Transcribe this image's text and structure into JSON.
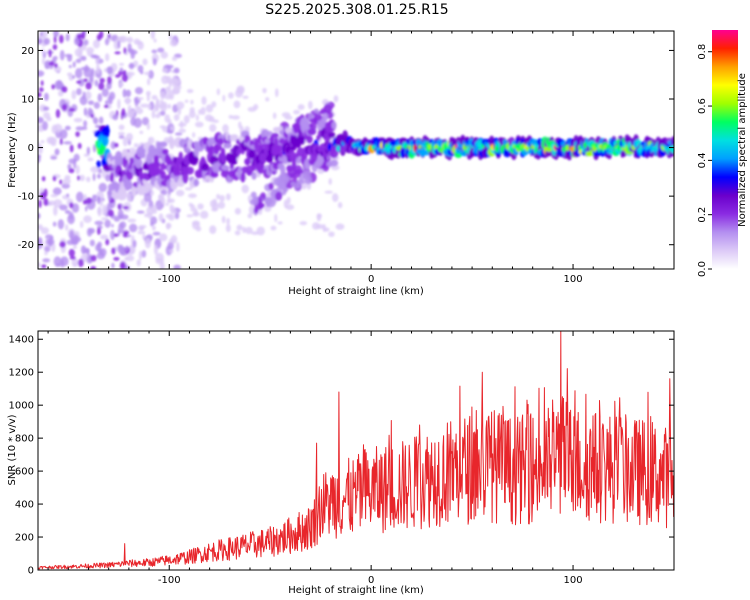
{
  "title": "S225.2025.308.01.25.R15",
  "colors": {
    "background": "#ffffff",
    "axis": "#000000",
    "snr_line": "#e8262b",
    "colormap": [
      "#ffffff",
      "#dccaf7",
      "#b48ff0",
      "#8a2be2",
      "#6a00cc",
      "#0000ff",
      "#00a0ff",
      "#00e0e0",
      "#00ff60",
      "#a0ff00",
      "#ffff00",
      "#ffa000",
      "#ff2000",
      "#ff0090"
    ]
  },
  "chart_data": [
    {
      "type": "heatmap",
      "name": "spectrogram",
      "xlabel": "Height of straight line (km)",
      "ylabel": "Frequency (Hz)",
      "xlim": [
        -165,
        150
      ],
      "ylim": [
        -25,
        24
      ],
      "xticks": [
        -100,
        0,
        100
      ],
      "yticks": [
        -20,
        -10,
        0,
        10,
        20
      ],
      "xtick_labels": [
        "-100",
        "0",
        "100"
      ],
      "ytick_labels": [
        "-20",
        "-10",
        "0",
        "10",
        "20"
      ],
      "colorbar": {
        "label": "Normalized spectral amplitude",
        "range": [
          0,
          0.88
        ],
        "ticks": [
          0.0,
          0.2,
          0.4,
          0.6,
          0.8
        ],
        "tick_labels": [
          "0.0",
          "0.2",
          "0.4",
          "0.6",
          "0.8"
        ]
      },
      "ridge": [
        {
          "x": -130,
          "freq": -6,
          "amp": 0.18
        },
        {
          "x": -110,
          "freq": -4,
          "amp": 0.22
        },
        {
          "x": -90,
          "freq": -3,
          "amp": 0.24
        },
        {
          "x": -70,
          "freq": -2,
          "amp": 0.26
        },
        {
          "x": -50,
          "freq": -1,
          "amp": 0.25
        },
        {
          "x": -30,
          "freq": 1,
          "amp": 0.28
        },
        {
          "x": -15,
          "freq": 1,
          "amp": 0.32
        },
        {
          "x": 0,
          "freq": 0,
          "amp": 0.55
        },
        {
          "x": 25,
          "freq": 0,
          "amp": 0.62
        },
        {
          "x": 50,
          "freq": 0,
          "amp": 0.6
        },
        {
          "x": 75,
          "freq": 0,
          "amp": 0.62
        },
        {
          "x": 100,
          "freq": 0,
          "amp": 0.63
        },
        {
          "x": 125,
          "freq": 0,
          "amp": 0.6
        },
        {
          "x": 150,
          "freq": 0,
          "amp": 0.55
        }
      ]
    },
    {
      "type": "line",
      "name": "snr",
      "xlabel": "Height of straight line (km)",
      "ylabel": "SNR (10 * v/v)",
      "xlim": [
        -165,
        150
      ],
      "ylim": [
        0,
        1450
      ],
      "xticks": [
        -100,
        0,
        100
      ],
      "yticks": [
        0,
        200,
        400,
        600,
        800,
        1000,
        1200,
        1400
      ],
      "xtick_labels": [
        "-100",
        "0",
        "100"
      ],
      "ytick_labels": [
        "0",
        "200",
        "400",
        "600",
        "800",
        "1000",
        "1200",
        "1400"
      ],
      "series": [
        {
          "name": "SNR",
          "x": [
            -165,
            -150,
            -140,
            -130,
            -120,
            -110,
            -100,
            -90,
            -80,
            -70,
            -60,
            -50,
            -40,
            -30,
            -25,
            -20,
            -15,
            -10,
            0,
            10,
            20,
            30,
            40,
            50,
            60,
            70,
            80,
            90,
            94,
            100,
            110,
            120,
            130,
            140,
            150
          ],
          "y": [
            15,
            20,
            25,
            30,
            40,
            45,
            60,
            80,
            110,
            130,
            150,
            170,
            210,
            260,
            380,
            420,
            430,
            440,
            480,
            500,
            520,
            570,
            600,
            620,
            640,
            600,
            620,
            650,
            700,
            650,
            630,
            620,
            600,
            590,
            550
          ]
        }
      ],
      "peaks": [
        {
          "x": -122,
          "y": 160
        },
        {
          "x": -27,
          "y": 770
        },
        {
          "x": -16,
          "y": 1080
        },
        {
          "x": 24,
          "y": 880
        },
        {
          "x": 55,
          "y": 1200
        },
        {
          "x": 94,
          "y": 1450
        },
        {
          "x": 148,
          "y": 1160
        }
      ]
    }
  ]
}
